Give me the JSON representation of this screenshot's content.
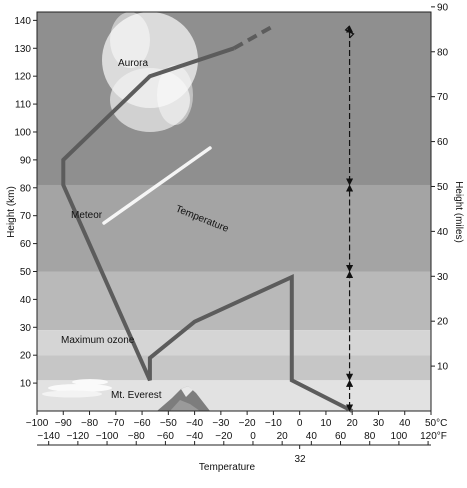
{
  "colors": {
    "band_top": "#8f8f8f",
    "band_mid_a": "#a4a4a4",
    "band_mid_b": "#b9b9b9",
    "band_ozone": "#d5d5d5",
    "band_low": "#c6c6c6",
    "band_surface": "#e2e2e2",
    "profile_line": "#5c5c5c",
    "axis": "#222222",
    "aurora": "#f4f4f4",
    "meteor": "#ffffff"
  },
  "icons": {
    "aurora": "aurora-glow",
    "meteor": "meteor-streak",
    "clouds": "cloud-wisps",
    "mountain": "mountain-peak",
    "boundary_arrows": "double-headed-arrow"
  },
  "chart_data": {
    "type": "line",
    "xlabel": "Temperature",
    "ylabel_left": "Height (km)",
    "ylabel_right": "Height (miles)",
    "xlim_c": [
      -100,
      50
    ],
    "ylim_km": [
      0,
      143
    ],
    "x_unit_c": "°C",
    "x_unit_f": "°F",
    "x_ticks_c": [
      "−100",
      "−90",
      "−80",
      "−70",
      "−60",
      "−50",
      "−40",
      "−30",
      "−20",
      "−10",
      "0",
      "10",
      "20",
      "30",
      "40",
      "50°C"
    ],
    "x_ticks_c_values": [
      -100,
      -90,
      -80,
      -70,
      -60,
      -50,
      -40,
      -30,
      -20,
      -10,
      0,
      10,
      20,
      30,
      40,
      50
    ],
    "x_ticks_f": [
      "−140",
      "−120",
      "−100",
      "−80",
      "−60",
      "−40",
      "−20",
      "0",
      "20",
      "40",
      "60",
      "80",
      "100",
      "120°F"
    ],
    "x_ticks_f_values": [
      -140,
      -120,
      -100,
      -80,
      -60,
      -40,
      -20,
      0,
      20,
      40,
      60,
      80,
      100,
      120
    ],
    "freezing_label": "32",
    "freezing_value_f": 32,
    "y_ticks_km": [
      "10",
      "20",
      "30",
      "40",
      "50",
      "60",
      "70",
      "80",
      "90",
      "100",
      "110",
      "120",
      "130",
      "140"
    ],
    "y_ticks_km_values": [
      10,
      20,
      30,
      40,
      50,
      60,
      70,
      80,
      90,
      100,
      110,
      120,
      130,
      140
    ],
    "y_ticks_mi": [
      "10",
      "20",
      "30",
      "40",
      "50",
      "60",
      "70",
      "80",
      "90"
    ],
    "y_ticks_mi_values": [
      10,
      20,
      30,
      40,
      50,
      60,
      70,
      80,
      90
    ],
    "series": [
      {
        "name": "Temperature",
        "x": [
          20,
          -3,
          -3,
          -40,
          -57,
          -57,
          -90,
          -90,
          -57,
          -25
        ],
        "y": [
          0,
          11,
          48,
          32,
          19,
          11,
          81,
          90,
          120,
          130
        ],
        "dashed_extension": {
          "x": [
            -25,
            -10
          ],
          "y": [
            130,
            138
          ]
        }
      }
    ],
    "annotations": {
      "aurora": "Aurora",
      "meteor": "Meteor",
      "temperature": "Temperature",
      "maximum_ozone": "Maximum ozone",
      "mt_everest": "Mt. Everest"
    },
    "layer_boundaries_km": [
      0,
      11,
      50,
      81,
      143
    ]
  }
}
